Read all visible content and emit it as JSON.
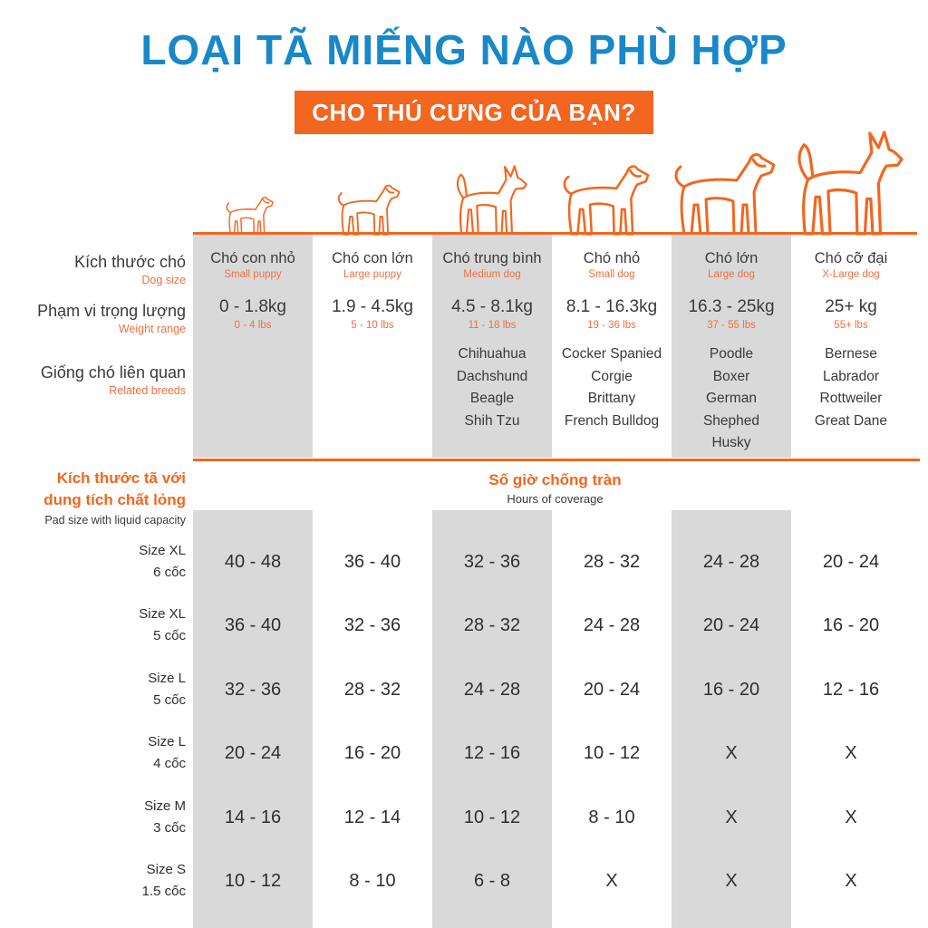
{
  "title": "LOẠI TÃ MIẾNG NÀO PHÙ HỢP",
  "subtitle": "CHO THÚ CƯNG CỦA BẠN?",
  "colors": {
    "accent_blue": "#1888c9",
    "accent_orange": "#f2661f",
    "sub_orange": "#ef7042",
    "shade_gray": "#d9d9d9",
    "text_dark": "#3a3a3a"
  },
  "row_labels": {
    "dog_size_vi": "Kích thước chó",
    "dog_size_en": "Dog size",
    "weight_range_vi": "Phạm vi trọng lượng",
    "weight_range_en": "Weight range",
    "related_breeds_vi": "Giống chó liên quan",
    "related_breeds_en": "Related breeds",
    "pad_size_vi_line1": "Kích thước tã với",
    "pad_size_vi_line2": "dung tích chất lỏng",
    "pad_size_en": "Pad size with liquid capacity",
    "hours_vi": "Số giờ chống tràn",
    "hours_en": "Hours of coverage"
  },
  "columns": [
    {
      "name_vi": "Chó con nhỏ",
      "name_en": "Small puppy",
      "weight_kg": "0 - 1.8kg",
      "weight_lbs": "0 - 4 lbs",
      "breeds": [],
      "shaded": true
    },
    {
      "name_vi": "Chó con lớn",
      "name_en": "Large puppy",
      "weight_kg": "1.9 - 4.5kg",
      "weight_lbs": "5 - 10 lbs",
      "breeds": [],
      "shaded": false
    },
    {
      "name_vi": "Chó trung bình",
      "name_en": "Medium dog",
      "weight_kg": "4.5 - 8.1kg",
      "weight_lbs": "11 - 18 lbs",
      "breeds": [
        "Chihuahua",
        "Dachshund",
        "Beagle",
        "Shih Tzu"
      ],
      "shaded": true
    },
    {
      "name_vi": "Chó nhỏ",
      "name_en": "Small dog",
      "weight_kg": "8.1 - 16.3kg",
      "weight_lbs": "19 - 36 lbs",
      "breeds": [
        "Cocker Spanied",
        "Corgie",
        "Brittany",
        "French Bulldog"
      ],
      "shaded": false
    },
    {
      "name_vi": "Chó lớn",
      "name_en": "Large dog",
      "weight_kg": "16.3 - 25kg",
      "weight_lbs": "37 - 55 lbs",
      "breeds": [
        "Poodle",
        "Boxer",
        "German",
        "Shephed",
        "Husky"
      ],
      "shaded": true
    },
    {
      "name_vi": "Chó cỡ đại",
      "name_en": "X-Large dog",
      "weight_kg": "25+ kg",
      "weight_lbs": "55+ lbs",
      "breeds": [
        "Bernese",
        "Labrador",
        "Rottweiler",
        "Great Dane"
      ],
      "shaded": false
    }
  ],
  "pad_rows": [
    {
      "size": "Size XL",
      "cups": "6 cốc",
      "values": [
        "40 - 48",
        "36 - 40",
        "32 - 36",
        "28 - 32",
        "24 - 28",
        "20 - 24"
      ]
    },
    {
      "size": "Size XL",
      "cups": "5 cốc",
      "values": [
        "36 - 40",
        "32 - 36",
        "28 - 32",
        "24 - 28",
        "20 - 24",
        "16 - 20"
      ]
    },
    {
      "size": "Size L",
      "cups": "5 cốc",
      "values": [
        "32 - 36",
        "28 - 32",
        "24 - 28",
        "20 - 24",
        "16 - 20",
        "12 - 16"
      ]
    },
    {
      "size": "Size L",
      "cups": "4 cốc",
      "values": [
        "20 - 24",
        "16 - 20",
        "12 - 16",
        "10 - 12",
        "X",
        "X"
      ]
    },
    {
      "size": "Size M",
      "cups": "3 cốc",
      "values": [
        "14 - 16",
        "12 - 14",
        "10 - 12",
        "8 - 10",
        "X",
        "X"
      ]
    },
    {
      "size": "Size S",
      "cups": "1.5 cốc",
      "values": [
        "10 - 12",
        "8 - 10",
        "6 - 8",
        "X",
        "X",
        "X"
      ]
    }
  ]
}
